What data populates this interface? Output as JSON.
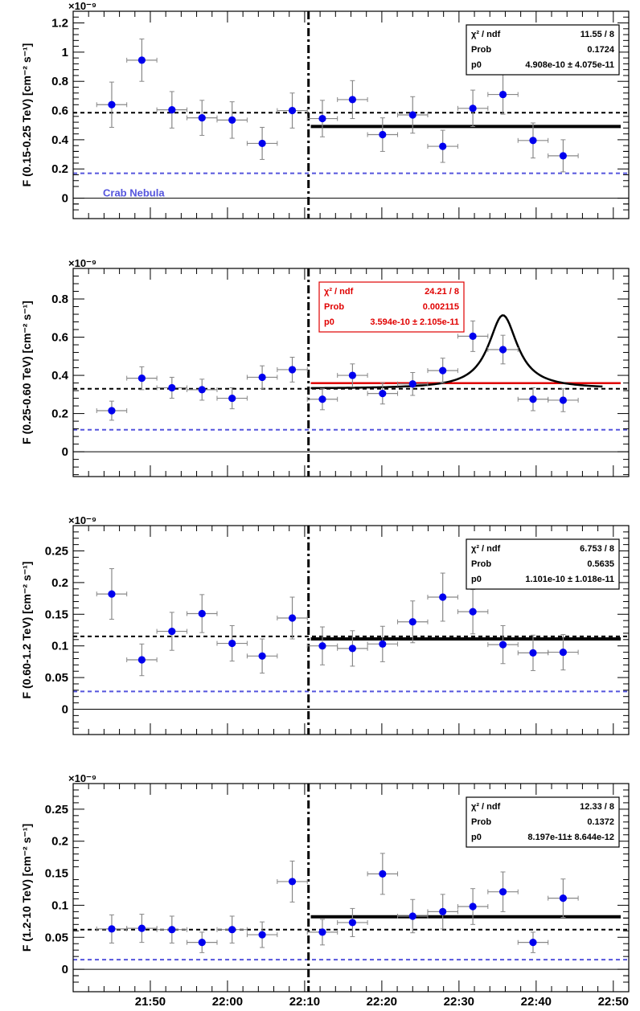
{
  "chart_data": [
    {
      "type": "scatter",
      "ylabel": "F (0.15-0.25 TeV)  [cm⁻² s⁻¹]",
      "multiplier": "×10⁻⁹",
      "ylim": [
        -0.14,
        1.28
      ],
      "yticks": [
        0,
        0.2,
        0.4,
        0.6,
        0.8,
        1,
        1.2
      ],
      "ytick_labels": [
        "0",
        "0.2",
        "0.4",
        "0.6",
        "0.8",
        "1",
        "1.2"
      ],
      "points": [
        {
          "t": 21.75,
          "y": 0.64,
          "err": 0.155
        },
        {
          "t": 21.815,
          "y": 0.945,
          "err": 0.145
        },
        {
          "t": 21.88,
          "y": 0.605,
          "err": 0.125
        },
        {
          "t": 21.945,
          "y": 0.55,
          "err": 0.12
        },
        {
          "t": 22.01,
          "y": 0.535,
          "err": 0.125
        },
        {
          "t": 22.075,
          "y": 0.375,
          "err": 0.11
        },
        {
          "t": 22.14,
          "y": 0.6,
          "err": 0.12
        },
        {
          "t": 22.205,
          "y": 0.545,
          "err": 0.125
        },
        {
          "t": 22.27,
          "y": 0.675,
          "err": 0.13
        },
        {
          "t": 22.335,
          "y": 0.435,
          "err": 0.115
        },
        {
          "t": 22.4,
          "y": 0.57,
          "err": 0.125
        },
        {
          "t": 22.465,
          "y": 0.355,
          "err": 0.11
        },
        {
          "t": 22.53,
          "y": 0.615,
          "err": 0.125
        },
        {
          "t": 22.595,
          "y": 0.71,
          "err": 0.135
        },
        {
          "t": 22.66,
          "y": 0.395,
          "err": 0.12
        },
        {
          "t": 22.725,
          "y": 0.29,
          "err": 0.11
        }
      ],
      "dashed_mean": 0.585,
      "crab_level": 0.17,
      "fit": {
        "y": 0.491
      },
      "crab_label": "Crab Nebula",
      "stats": {
        "color": "#000000",
        "rows": [
          {
            "name": "χ² / ndf",
            "value": "11.55 / 8"
          },
          {
            "name": "Prob",
            "value": "0.1724"
          },
          {
            "name": "p0",
            "value": "4.908e-10 ± 4.075e-11"
          }
        ]
      }
    },
    {
      "type": "scatter",
      "ylabel": "F (0.25-0.60 TeV)  [cm⁻² s⁻¹]",
      "multiplier": "×10⁻⁹",
      "ylim": [
        -0.13,
        0.96
      ],
      "yticks": [
        0,
        0.2,
        0.4,
        0.6,
        0.8
      ],
      "ytick_labels": [
        "0",
        "0.2",
        "0.4",
        "0.6",
        "0.8"
      ],
      "points": [
        {
          "t": 21.75,
          "y": 0.215,
          "err": 0.05
        },
        {
          "t": 21.815,
          "y": 0.385,
          "err": 0.06
        },
        {
          "t": 21.88,
          "y": 0.335,
          "err": 0.055
        },
        {
          "t": 21.945,
          "y": 0.325,
          "err": 0.055
        },
        {
          "t": 22.01,
          "y": 0.28,
          "err": 0.055
        },
        {
          "t": 22.075,
          "y": 0.39,
          "err": 0.06
        },
        {
          "t": 22.14,
          "y": 0.43,
          "err": 0.065
        },
        {
          "t": 22.205,
          "y": 0.275,
          "err": 0.055
        },
        {
          "t": 22.27,
          "y": 0.4,
          "err": 0.06
        },
        {
          "t": 22.335,
          "y": 0.305,
          "err": 0.055
        },
        {
          "t": 22.4,
          "y": 0.355,
          "err": 0.06
        },
        {
          "t": 22.465,
          "y": 0.425,
          "err": 0.065
        },
        {
          "t": 22.53,
          "y": 0.605,
          "err": 0.08
        },
        {
          "t": 22.595,
          "y": 0.535,
          "err": 0.075
        },
        {
          "t": 22.66,
          "y": 0.275,
          "err": 0.06
        },
        {
          "t": 22.725,
          "y": 0.27,
          "err": 0.06
        }
      ],
      "dashed_mean": 0.33,
      "crab_level": 0.115,
      "fit": {
        "y": 0.359,
        "color": "#e00000"
      },
      "peak_curve": {
        "base": 0.33,
        "amp": 0.385,
        "center": 22.595,
        "width": 0.038
      },
      "stats": {
        "color": "#e00000",
        "rows": [
          {
            "name": "χ² / ndf",
            "value": "24.21 / 8"
          },
          {
            "name": "Prob",
            "value": "0.002115"
          },
          {
            "name": "p0",
            "value": "3.594e-10 ± 2.105e-11"
          }
        ]
      }
    },
    {
      "type": "scatter",
      "ylabel": "F (0.60-1.2 TeV)  [cm⁻² s⁻¹]",
      "multiplier": "×10⁻⁹",
      "ylim": [
        -0.04,
        0.29
      ],
      "yticks": [
        0,
        0.05,
        0.1,
        0.15,
        0.2,
        0.25
      ],
      "ytick_labels": [
        "0",
        "0.05",
        "0.1",
        "0.15",
        "0.2",
        "0.25"
      ],
      "points": [
        {
          "t": 21.75,
          "y": 0.182,
          "err": 0.04
        },
        {
          "t": 21.815,
          "y": 0.078,
          "err": 0.025
        },
        {
          "t": 21.88,
          "y": 0.123,
          "err": 0.03
        },
        {
          "t": 21.945,
          "y": 0.151,
          "err": 0.03
        },
        {
          "t": 22.01,
          "y": 0.104,
          "err": 0.028
        },
        {
          "t": 22.075,
          "y": 0.084,
          "err": 0.027
        },
        {
          "t": 22.14,
          "y": 0.144,
          "err": 0.033
        },
        {
          "t": 22.205,
          "y": 0.1,
          "err": 0.03
        },
        {
          "t": 22.27,
          "y": 0.096,
          "err": 0.028
        },
        {
          "t": 22.335,
          "y": 0.103,
          "err": 0.028
        },
        {
          "t": 22.4,
          "y": 0.138,
          "err": 0.033
        },
        {
          "t": 22.465,
          "y": 0.177,
          "err": 0.038
        },
        {
          "t": 22.53,
          "y": 0.154,
          "err": 0.035
        },
        {
          "t": 22.595,
          "y": 0.102,
          "err": 0.03
        },
        {
          "t": 22.66,
          "y": 0.089,
          "err": 0.028
        },
        {
          "t": 22.725,
          "y": 0.09,
          "err": 0.028
        }
      ],
      "dashed_mean": 0.115,
      "crab_level": 0.028,
      "fit": {
        "y": 0.111
      },
      "stats": {
        "color": "#000000",
        "rows": [
          {
            "name": "χ² / ndf",
            "value": "6.753 / 8"
          },
          {
            "name": "Prob",
            "value": "0.5635"
          },
          {
            "name": "p0",
            "value": "1.101e-10 ± 1.018e-11"
          }
        ]
      }
    },
    {
      "type": "scatter",
      "ylabel": "F (1.2-10 TeV)  [cm⁻² s⁻¹]",
      "multiplier": "×10⁻⁹",
      "ylim": [
        -0.035,
        0.29
      ],
      "yticks": [
        0,
        0.05,
        0.1,
        0.15,
        0.2,
        0.25
      ],
      "ytick_labels": [
        "0",
        "0.05",
        "0.1",
        "0.15",
        "0.2",
        "0.25"
      ],
      "points": [
        {
          "t": 21.75,
          "y": 0.063,
          "err": 0.022
        },
        {
          "t": 21.815,
          "y": 0.064,
          "err": 0.022
        },
        {
          "t": 21.88,
          "y": 0.062,
          "err": 0.021
        },
        {
          "t": 21.945,
          "y": 0.042,
          "err": 0.016
        },
        {
          "t": 22.01,
          "y": 0.062,
          "err": 0.021
        },
        {
          "t": 22.075,
          "y": 0.054,
          "err": 0.02
        },
        {
          "t": 22.14,
          "y": 0.137,
          "err": 0.032
        },
        {
          "t": 22.205,
          "y": 0.058,
          "err": 0.02
        },
        {
          "t": 22.27,
          "y": 0.073,
          "err": 0.022
        },
        {
          "t": 22.335,
          "y": 0.149,
          "err": 0.032
        },
        {
          "t": 22.4,
          "y": 0.083,
          "err": 0.026
        },
        {
          "t": 22.465,
          "y": 0.09,
          "err": 0.027
        },
        {
          "t": 22.53,
          "y": 0.098,
          "err": 0.028
        },
        {
          "t": 22.595,
          "y": 0.121,
          "err": 0.031
        },
        {
          "t": 22.66,
          "y": 0.042,
          "err": 0.016
        },
        {
          "t": 22.725,
          "y": 0.111,
          "err": 0.03
        }
      ],
      "dashed_mean": 0.062,
      "crab_level": 0.015,
      "fit": {
        "y": 0.082
      },
      "stats": {
        "color": "#000000",
        "rows": [
          {
            "name": "χ² / ndf",
            "value": "12.33 / 8"
          },
          {
            "name": "Prob",
            "value": "0.1372"
          },
          {
            "name": "p0",
            "value": "8.197e-11± 8.644e-12"
          }
        ]
      }
    }
  ],
  "shared_x": {
    "xlim": [
      21.6667,
      22.8667
    ],
    "ticks": [
      21.8333,
      22.0,
      22.1667,
      22.3333,
      22.5,
      22.6667,
      22.8333
    ],
    "tick_labels": [
      "21:50",
      "22:00",
      "22:10",
      "22:20",
      "22:30",
      "22:40",
      "22:50"
    ],
    "bin_halfwidth": 0.0325,
    "split_time": 22.175,
    "fit_start": 22.18
  },
  "colors": {
    "points": "#0000ee",
    "crab": "#5555dd",
    "error_bars": "#888888",
    "frame": "#000000"
  }
}
